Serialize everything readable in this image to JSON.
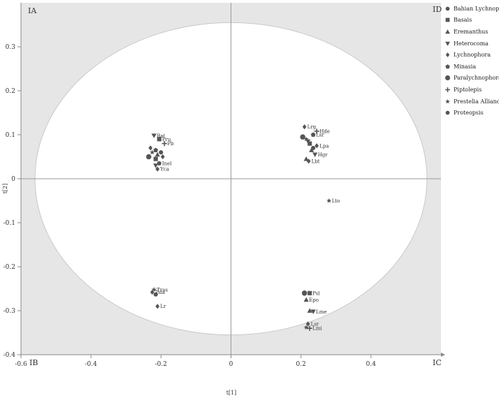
{
  "chart_data": {
    "type": "scatter",
    "xlabel": "t[1]",
    "ylabel": "t[2]",
    "xlim": [
      -0.6,
      0.6
    ],
    "ylim": [
      -0.4,
      0.4
    ],
    "xticks": [
      "-0.6",
      "-0.4",
      "-0.2",
      "0",
      "0.2",
      "0.4"
    ],
    "yticks": [
      "0.3",
      "0.2",
      "0.1",
      "0",
      "-0.1",
      "-0.2",
      "-0.3",
      "-0.4"
    ],
    "corner_labels": {
      "top_left": "IA",
      "bottom_left": "IB",
      "bottom_right": "IC",
      "top_right": "ID"
    },
    "legend_position": "top-right",
    "ellipse": {
      "cx": 0,
      "cy": 0,
      "rx": 0.56,
      "ry": 0.355
    },
    "colors": {
      "marker": "#555555",
      "ellipse": "#c8c8c8",
      "background": "#e6e6e6",
      "axis": "#9a9a9a"
    },
    "series": [
      {
        "name": "Bahian Lychnophora",
        "marker": "circle"
      },
      {
        "name": "Basais",
        "marker": "square"
      },
      {
        "name": "Eremanthus",
        "marker": "triangle-up"
      },
      {
        "name": "Heterocoma",
        "marker": "triangle-down"
      },
      {
        "name": "Lychnophora",
        "marker": "diamond"
      },
      {
        "name": "Minasia",
        "marker": "pentagon"
      },
      {
        "name": "Paralychnophora",
        "marker": "circle-large"
      },
      {
        "name": "Piptolepis",
        "marker": "plus"
      },
      {
        "name": "Prestelia Alliance",
        "marker": "star"
      },
      {
        "name": "Proteopsis",
        "marker": "circle"
      }
    ],
    "points": [
      {
        "x": -0.22,
        "y": 0.098,
        "marker": "triangle-down",
        "label": "Bat"
      },
      {
        "x": -0.205,
        "y": 0.09,
        "marker": "square",
        "label": "Pru"
      },
      {
        "x": -0.19,
        "y": 0.08,
        "marker": "plus",
        "label": "Pb"
      },
      {
        "x": -0.23,
        "y": 0.07,
        "marker": "diamond",
        "label": ""
      },
      {
        "x": -0.215,
        "y": 0.065,
        "marker": "pentagon",
        "label": ""
      },
      {
        "x": -0.2,
        "y": 0.06,
        "marker": "circle",
        "label": ""
      },
      {
        "x": -0.225,
        "y": 0.06,
        "marker": "star",
        "label": ""
      },
      {
        "x": -0.21,
        "y": 0.055,
        "marker": "triangle-up",
        "label": ""
      },
      {
        "x": -0.235,
        "y": 0.05,
        "marker": "circle-large",
        "label": ""
      },
      {
        "x": -0.195,
        "y": 0.05,
        "marker": "diamond",
        "label": ""
      },
      {
        "x": -0.215,
        "y": 0.045,
        "marker": "square",
        "label": ""
      },
      {
        "x": -0.205,
        "y": 0.035,
        "marker": "circle",
        "label": "Inel"
      },
      {
        "x": -0.215,
        "y": 0.03,
        "marker": "triangle-down",
        "label": ""
      },
      {
        "x": -0.21,
        "y": 0.022,
        "marker": "diamond",
        "label": "Yca"
      },
      {
        "x": 0.21,
        "y": 0.118,
        "marker": "diamond",
        "label": "Lrg"
      },
      {
        "x": 0.245,
        "y": 0.108,
        "marker": "plus",
        "label": "Hde"
      },
      {
        "x": 0.235,
        "y": 0.1,
        "marker": "pentagon",
        "label": "Lsr"
      },
      {
        "x": 0.205,
        "y": 0.095,
        "marker": "circle-large",
        "label": ""
      },
      {
        "x": 0.215,
        "y": 0.09,
        "marker": "star",
        "label": ""
      },
      {
        "x": 0.22,
        "y": 0.085,
        "marker": "triangle-down",
        "label": ""
      },
      {
        "x": 0.225,
        "y": 0.08,
        "marker": "square",
        "label": ""
      },
      {
        "x": 0.245,
        "y": 0.075,
        "marker": "diamond",
        "label": "Lpa"
      },
      {
        "x": 0.235,
        "y": 0.07,
        "marker": "circle",
        "label": ""
      },
      {
        "x": 0.23,
        "y": 0.065,
        "marker": "triangle-up",
        "label": ""
      },
      {
        "x": 0.24,
        "y": 0.055,
        "marker": "triangle-down",
        "label": "Hgr"
      },
      {
        "x": 0.215,
        "y": 0.045,
        "marker": "triangle-up",
        "label": ""
      },
      {
        "x": 0.222,
        "y": 0.04,
        "marker": "diamond",
        "label": "Lbt"
      },
      {
        "x": 0.28,
        "y": -0.05,
        "marker": "star",
        "label": "Lto"
      },
      {
        "x": -0.22,
        "y": -0.252,
        "marker": "star",
        "label": "Tras"
      },
      {
        "x": -0.225,
        "y": -0.258,
        "marker": "diamond",
        "label": "Tsla"
      },
      {
        "x": -0.215,
        "y": -0.263,
        "marker": "circle",
        "label": ""
      },
      {
        "x": -0.21,
        "y": -0.29,
        "marker": "diamond",
        "label": "Lr"
      },
      {
        "x": 0.21,
        "y": -0.26,
        "marker": "circle-large",
        "label": ""
      },
      {
        "x": 0.225,
        "y": -0.26,
        "marker": "square",
        "label": "Psl"
      },
      {
        "x": 0.215,
        "y": -0.275,
        "marker": "triangle-up",
        "label": "Epo"
      },
      {
        "x": 0.225,
        "y": -0.3,
        "marker": "triangle-up",
        "label": ""
      },
      {
        "x": 0.235,
        "y": -0.302,
        "marker": "triangle-down",
        "label": "Lme"
      },
      {
        "x": 0.22,
        "y": -0.33,
        "marker": "diamond",
        "label": "Lsr"
      },
      {
        "x": 0.215,
        "y": -0.338,
        "marker": "star",
        "label": ""
      },
      {
        "x": 0.225,
        "y": -0.34,
        "marker": "plus",
        "label": "Lmi"
      }
    ]
  }
}
